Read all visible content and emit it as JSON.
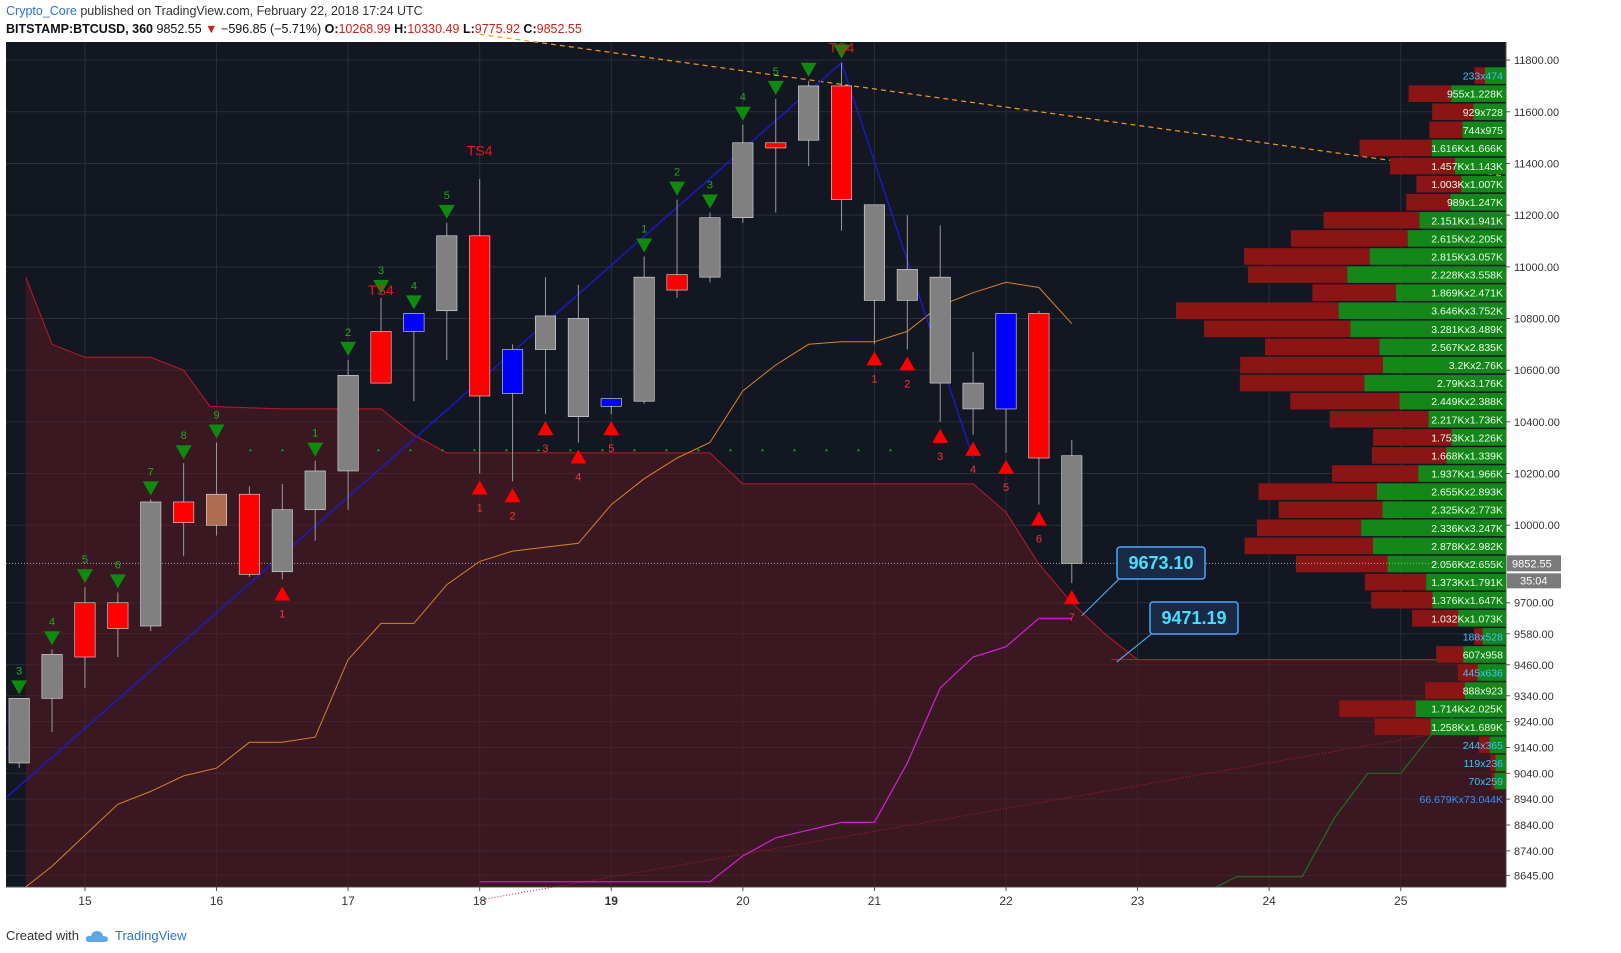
{
  "header": {
    "user": "Crypto_Core",
    "published": "published on TradingView.com, February 22, 2018 17:24 UTC",
    "symbol": "BITSTAMP:BTCUSD, 360",
    "last": "9852.55",
    "change": "−596.85 (−5.71%)",
    "o_label": "O:",
    "o_val": "10268.99",
    "h_label": "H:",
    "h_val": "10330.49",
    "l_label": "L:",
    "l_val": "9775.92",
    "c_label": "C:",
    "c_val": "9852.55"
  },
  "footer": {
    "created": "Created with",
    "brand": "TradingView",
    "logo_icon": "tradingview-cloud-icon"
  },
  "colors": {
    "background": "#131722",
    "up": "#808080",
    "down": "#ff0000",
    "blue": "#0000ff",
    "brown": "#b06d4e",
    "grid": "#2a2e39",
    "buy_marker": "#0f8a0f",
    "sell_marker": "#ff0000"
  },
  "chart_data": {
    "type": "candlestick",
    "ylim": [
      8600,
      11870
    ],
    "y_ticks": [
      8645,
      8740,
      8840,
      8940,
      9040,
      9140,
      9240,
      9340,
      9460,
      9580,
      9700,
      9852.55,
      10000,
      10200,
      10400,
      10600,
      10800,
      11000,
      11200,
      11400,
      11600,
      11800
    ],
    "y_tick_labels": [
      "8645.00",
      "8740.00",
      "8840.00",
      "8940.00",
      "9040.00",
      "9140.00",
      "9240.00",
      "9340.00",
      "9460.00",
      "9580.00",
      "9700.00",
      "9852.55",
      "10000.00",
      "10200.00",
      "10400.00",
      "10600.00",
      "10800.00",
      "11000.00",
      "11200.00",
      "11400.00",
      "11600.00",
      "11800.00"
    ],
    "x_tick_labels": [
      "15",
      "16",
      "17",
      "18",
      "19",
      "20",
      "21",
      "22",
      "23",
      "24",
      "25"
    ],
    "x_tick_days": [
      15,
      16,
      17,
      18,
      19,
      20,
      21,
      22,
      23,
      24,
      25
    ],
    "x_range_days": [
      14.4,
      25.8
    ],
    "last_price_label": "9852.55",
    "countdown_label": "35:04",
    "candles": [
      {
        "t": 14.5,
        "o": 9080,
        "h": 9330,
        "l": 9060,
        "c": 9330,
        "col": "up"
      },
      {
        "t": 14.75,
        "o": 9330,
        "h": 9520,
        "l": 9200,
        "c": 9500,
        "col": "up"
      },
      {
        "t": 15.0,
        "o": 9700,
        "h": 9760,
        "l": 9370,
        "c": 9490,
        "col": "down"
      },
      {
        "t": 15.25,
        "o": 9700,
        "h": 9740,
        "l": 9490,
        "c": 9600,
        "col": "down"
      },
      {
        "t": 15.5,
        "o": 9610,
        "h": 10100,
        "l": 9590,
        "c": 10090,
        "col": "up"
      },
      {
        "t": 15.75,
        "o": 10090,
        "h": 10240,
        "l": 9880,
        "c": 10010,
        "col": "down"
      },
      {
        "t": 16.0,
        "o": 10000,
        "h": 10320,
        "l": 9960,
        "c": 10120,
        "col": "brown"
      },
      {
        "t": 16.25,
        "o": 10120,
        "h": 10150,
        "l": 9800,
        "c": 9810,
        "col": "down"
      },
      {
        "t": 16.5,
        "o": 9820,
        "h": 10160,
        "l": 9790,
        "c": 10060,
        "col": "up"
      },
      {
        "t": 16.75,
        "o": 10060,
        "h": 10250,
        "l": 9940,
        "c": 10210,
        "col": "up"
      },
      {
        "t": 17.0,
        "o": 10210,
        "h": 10640,
        "l": 10060,
        "c": 10580,
        "col": "up"
      },
      {
        "t": 17.25,
        "o": 10750,
        "h": 10880,
        "l": 10560,
        "c": 10550,
        "col": "down"
      },
      {
        "t": 17.5,
        "o": 10750,
        "h": 10820,
        "l": 10480,
        "c": 10820,
        "col": "blue"
      },
      {
        "t": 17.75,
        "o": 10830,
        "h": 11170,
        "l": 10640,
        "c": 11120,
        "col": "up"
      },
      {
        "t": 18.0,
        "o": 11120,
        "h": 11340,
        "l": 10200,
        "c": 10500,
        "col": "down"
      },
      {
        "t": 18.25,
        "o": 10510,
        "h": 10700,
        "l": 10170,
        "c": 10680,
        "col": "blue"
      },
      {
        "t": 18.5,
        "o": 10680,
        "h": 10960,
        "l": 10430,
        "c": 10810,
        "col": "up"
      },
      {
        "t": 18.75,
        "o": 10800,
        "h": 10930,
        "l": 10320,
        "c": 10420,
        "col": "up"
      },
      {
        "t": 19.0,
        "o": 10460,
        "h": 10490,
        "l": 10430,
        "c": 10490,
        "col": "blue"
      },
      {
        "t": 19.25,
        "o": 10480,
        "h": 11040,
        "l": 10470,
        "c": 10960,
        "col": "up"
      },
      {
        "t": 19.5,
        "o": 10970,
        "h": 11260,
        "l": 10880,
        "c": 10910,
        "col": "down"
      },
      {
        "t": 19.75,
        "o": 10960,
        "h": 11210,
        "l": 10940,
        "c": 11190,
        "col": "up"
      },
      {
        "t": 20.0,
        "o": 11190,
        "h": 11550,
        "l": 11170,
        "c": 11480,
        "col": "up"
      },
      {
        "t": 20.25,
        "o": 11480,
        "h": 11650,
        "l": 11210,
        "c": 11460,
        "col": "down"
      },
      {
        "t": 20.5,
        "o": 11490,
        "h": 11720,
        "l": 11390,
        "c": 11700,
        "col": "up"
      },
      {
        "t": 20.75,
        "o": 11700,
        "h": 11790,
        "l": 11140,
        "c": 11260,
        "col": "down"
      },
      {
        "t": 21.0,
        "o": 10870,
        "h": 11240,
        "l": 10700,
        "c": 11240,
        "col": "up"
      },
      {
        "t": 21.25,
        "o": 10870,
        "h": 11200,
        "l": 10680,
        "c": 10990,
        "col": "up"
      },
      {
        "t": 21.5,
        "o": 10550,
        "h": 11160,
        "l": 10400,
        "c": 10960,
        "col": "up"
      },
      {
        "t": 21.75,
        "o": 10550,
        "h": 10670,
        "l": 10350,
        "c": 10450,
        "col": "up"
      },
      {
        "t": 22.0,
        "o": 10450,
        "h": 10820,
        "l": 10280,
        "c": 10820,
        "col": "blue"
      },
      {
        "t": 22.25,
        "o": 10820,
        "h": 10830,
        "l": 10080,
        "c": 10260,
        "col": "down"
      },
      {
        "t": 22.5,
        "o": 10268.99,
        "h": 10330.49,
        "l": 9775.92,
        "c": 9852.55,
        "col": "up"
      }
    ],
    "buy_markers": [
      {
        "t": 14.5,
        "label": "3"
      },
      {
        "t": 14.75,
        "label": "4"
      },
      {
        "t": 15.0,
        "label": "5"
      },
      {
        "t": 15.25,
        "label": "6"
      },
      {
        "t": 15.5,
        "label": "7"
      },
      {
        "t": 15.75,
        "label": "8"
      },
      {
        "t": 16.0,
        "label": "9"
      },
      {
        "t": 16.75,
        "label": "1"
      },
      {
        "t": 17.0,
        "label": "2"
      },
      {
        "t": 17.25,
        "label": "3"
      },
      {
        "t": 17.5,
        "label": "4"
      },
      {
        "t": 17.75,
        "label": "5"
      },
      {
        "t": 19.25,
        "label": "1"
      },
      {
        "t": 19.5,
        "label": "2"
      },
      {
        "t": 19.75,
        "label": "3"
      },
      {
        "t": 20.0,
        "label": "4"
      },
      {
        "t": 20.25,
        "label": "5"
      },
      {
        "t": 20.5,
        "label": ""
      },
      {
        "t": 20.75,
        "label": ""
      }
    ],
    "sell_markers": [
      {
        "t": 16.5,
        "label": "1"
      },
      {
        "t": 18.0,
        "label": "1"
      },
      {
        "t": 18.25,
        "label": "2"
      },
      {
        "t": 18.5,
        "label": "3"
      },
      {
        "t": 18.75,
        "label": "4"
      },
      {
        "t": 19.0,
        "label": "5"
      },
      {
        "t": 21.0,
        "label": "1"
      },
      {
        "t": 21.25,
        "label": "2"
      },
      {
        "t": 21.5,
        "label": "3"
      },
      {
        "t": 21.75,
        "label": "4"
      },
      {
        "t": 22.0,
        "label": "5"
      },
      {
        "t": 22.25,
        "label": "6"
      },
      {
        "t": 22.5,
        "label": "7"
      }
    ],
    "ts_labels": [
      {
        "t": 17.25,
        "p": 10890,
        "label": "TS4"
      },
      {
        "t": 18.0,
        "p": 11430,
        "label": "TS4"
      },
      {
        "t": 20.75,
        "p": 11830,
        "label": "TS4"
      }
    ],
    "zigzag": [
      {
        "t": 14.4,
        "p": 8945
      },
      {
        "t": 20.75,
        "p": 11790
      },
      {
        "t": 21.75,
        "p": 10260
      }
    ],
    "cloud_upper": [
      {
        "t": 14.55,
        "p": 10960
      },
      {
        "t": 14.75,
        "p": 10700
      },
      {
        "t": 15.0,
        "p": 10650
      },
      {
        "t": 15.5,
        "p": 10650
      },
      {
        "t": 15.75,
        "p": 10600
      },
      {
        "t": 15.95,
        "p": 10460
      },
      {
        "t": 16.5,
        "p": 10450
      },
      {
        "t": 17.25,
        "p": 10450
      },
      {
        "t": 17.5,
        "p": 10350
      },
      {
        "t": 17.75,
        "p": 10280
      },
      {
        "t": 19.75,
        "p": 10280
      },
      {
        "t": 20.0,
        "p": 10160
      },
      {
        "t": 21.75,
        "p": 10160
      },
      {
        "t": 22.0,
        "p": 10050
      },
      {
        "t": 22.25,
        "p": 9850
      },
      {
        "t": 22.5,
        "p": 9700
      },
      {
        "t": 22.75,
        "p": 9580
      },
      {
        "t": 23.0,
        "p": 9480
      },
      {
        "t": 25.8,
        "p": 9480
      }
    ],
    "cloud_lower": [
      {
        "t": 14.55,
        "p": 8600
      },
      {
        "t": 25.8,
        "p": 8600
      }
    ],
    "orange_line": [
      {
        "t": 14.55,
        "p": 8600
      },
      {
        "t": 14.75,
        "p": 8680
      },
      {
        "t": 15.0,
        "p": 8800
      },
      {
        "t": 15.25,
        "p": 8920
      },
      {
        "t": 15.5,
        "p": 8970
      },
      {
        "t": 15.75,
        "p": 9030
      },
      {
        "t": 16.0,
        "p": 9060
      },
      {
        "t": 16.25,
        "p": 9160
      },
      {
        "t": 16.5,
        "p": 9160
      },
      {
        "t": 16.75,
        "p": 9180
      },
      {
        "t": 17.0,
        "p": 9480
      },
      {
        "t": 17.25,
        "p": 9620
      },
      {
        "t": 17.5,
        "p": 9620
      },
      {
        "t": 17.75,
        "p": 9770
      },
      {
        "t": 18.0,
        "p": 9860
      },
      {
        "t": 18.25,
        "p": 9900
      },
      {
        "t": 18.75,
        "p": 9930
      },
      {
        "t": 19.0,
        "p": 10080
      },
      {
        "t": 19.25,
        "p": 10180
      },
      {
        "t": 19.5,
        "p": 10260
      },
      {
        "t": 19.75,
        "p": 10320
      },
      {
        "t": 20.0,
        "p": 10520
      },
      {
        "t": 20.25,
        "p": 10620
      },
      {
        "t": 20.5,
        "p": 10700
      },
      {
        "t": 20.75,
        "p": 10710
      },
      {
        "t": 21.0,
        "p": 10710
      },
      {
        "t": 21.25,
        "p": 10750
      },
      {
        "t": 21.5,
        "p": 10850
      },
      {
        "t": 21.75,
        "p": 10900
      },
      {
        "t": 22.0,
        "p": 10940
      },
      {
        "t": 22.25,
        "p": 10920
      },
      {
        "t": 22.5,
        "p": 10780
      }
    ],
    "magenta_line": [
      {
        "t": 18.0,
        "p": 8620
      },
      {
        "t": 19.75,
        "p": 8620
      },
      {
        "t": 20.0,
        "p": 8720
      },
      {
        "t": 20.25,
        "p": 8790
      },
      {
        "t": 20.5,
        "p": 8820
      },
      {
        "t": 20.75,
        "p": 8850
      },
      {
        "t": 21.0,
        "p": 8850
      },
      {
        "t": 21.25,
        "p": 9080
      },
      {
        "t": 21.5,
        "p": 9370
      },
      {
        "t": 21.75,
        "p": 9490
      },
      {
        "t": 22.0,
        "p": 9530
      },
      {
        "t": 22.25,
        "p": 9640
      },
      {
        "t": 22.5,
        "p": 9640
      }
    ],
    "green_line": [
      {
        "t": 23.6,
        "p": 8600
      },
      {
        "t": 23.75,
        "p": 8640
      },
      {
        "t": 24.25,
        "p": 8640
      },
      {
        "t": 24.5,
        "p": 8870
      },
      {
        "t": 24.75,
        "p": 9040
      },
      {
        "t": 25.0,
        "p": 9040
      },
      {
        "t": 25.25,
        "p": 9200
      },
      {
        "t": 25.5,
        "p": 9300
      }
    ],
    "trend_dashed": {
      "t1": 18.0,
      "p1": 11900,
      "t2": 25.8,
      "p2": 11350
    },
    "trend_dotted": {
      "t1": 18.0,
      "p1": 8550,
      "t2": 25.8,
      "p2": 9240
    },
    "flat_line": {
      "t1": 22.8,
      "p1": 9480,
      "t2": 25.8,
      "p2": 9480
    },
    "dotted_level": {
      "t1": 16.25,
      "p1": 10290,
      "t2": 21.25,
      "p2": 10290
    },
    "callouts": [
      {
        "label": "9673.10",
        "t": 22.5,
        "p": 9650
      },
      {
        "label": "9471.19",
        "t": 22.75,
        "p": 9471
      }
    ],
    "volume_profile": [
      {
        "p": 11740,
        "sell": 233,
        "buy": 474,
        "label": "233x474"
      },
      {
        "p": 11670,
        "sell": 955,
        "buy": 1228,
        "label": "955x1.228K"
      },
      {
        "p": 11600,
        "sell": 929,
        "buy": 728,
        "label": "929x728"
      },
      {
        "p": 11530,
        "sell": 744,
        "buy": 975,
        "label": "744x975"
      },
      {
        "p": 11460,
        "sell": 1616,
        "buy": 1666,
        "label": "1.616Kx1.666K"
      },
      {
        "p": 11390,
        "sell": 1457,
        "buy": 1143,
        "label": "1.457Kx1.143K"
      },
      {
        "p": 11320,
        "sell": 1003,
        "buy": 1007,
        "label": "1.003Kx1.007K"
      },
      {
        "p": 11250,
        "sell": 989,
        "buy": 1247,
        "label": "989x1.247K"
      },
      {
        "p": 11180,
        "sell": 2151,
        "buy": 1941,
        "label": "2.151Kx1.941K"
      },
      {
        "p": 11110,
        "sell": 2615,
        "buy": 2205,
        "label": "2.615Kx2.205K"
      },
      {
        "p": 11040,
        "sell": 2815,
        "buy": 3057,
        "label": "2.815Kx3.057K"
      },
      {
        "p": 10970,
        "sell": 2228,
        "buy": 3558,
        "label": "2.228Kx3.558K"
      },
      {
        "p": 10900,
        "sell": 1869,
        "buy": 2471,
        "label": "1.869Kx2.471K"
      },
      {
        "p": 10830,
        "sell": 3646,
        "buy": 3752,
        "label": "3.646Kx3.752K"
      },
      {
        "p": 10760,
        "sell": 3281,
        "buy": 3489,
        "label": "3.281Kx3.489K"
      },
      {
        "p": 10690,
        "sell": 2567,
        "buy": 2835,
        "label": "2.567Kx2.835K"
      },
      {
        "p": 10620,
        "sell": 3200,
        "buy": 2760,
        "label": "3.2Kx2.76K"
      },
      {
        "p": 10550,
        "sell": 2790,
        "buy": 3176,
        "label": "2.79Kx3.176K"
      },
      {
        "p": 10480,
        "sell": 2449,
        "buy": 2388,
        "label": "2.449Kx2.388K"
      },
      {
        "p": 10410,
        "sell": 2217,
        "buy": 1736,
        "label": "2.217Kx1.736K"
      },
      {
        "p": 10340,
        "sell": 1753,
        "buy": 1226,
        "label": "1.753Kx1.226K"
      },
      {
        "p": 10270,
        "sell": 1668,
        "buy": 1339,
        "label": "1.668Kx1.339K"
      },
      {
        "p": 10200,
        "sell": 1937,
        "buy": 1966,
        "label": "1.937Kx1.966K"
      },
      {
        "p": 10130,
        "sell": 2655,
        "buy": 2893,
        "label": "2.655Kx2.893K"
      },
      {
        "p": 10060,
        "sell": 2325,
        "buy": 2773,
        "label": "2.325Kx2.773K"
      },
      {
        "p": 9990,
        "sell": 2336,
        "buy": 3247,
        "label": "2.336Kx3.247K"
      },
      {
        "p": 9920,
        "sell": 2878,
        "buy": 2982,
        "label": "2.878Kx2.982K"
      },
      {
        "p": 9850,
        "sell": 2056,
        "buy": 2655,
        "label": "2.056Kx2.655K"
      },
      {
        "p": 9780,
        "sell": 1373,
        "buy": 1791,
        "label": "1.373Kx1.791K"
      },
      {
        "p": 9710,
        "sell": 1376,
        "buy": 1647,
        "label": "1.376Kx1.647K"
      },
      {
        "p": 9640,
        "sell": 1032,
        "buy": 1073,
        "label": "1.032Kx1.073K"
      },
      {
        "p": 9570,
        "sell": 188,
        "buy": 528,
        "label": "188x528"
      },
      {
        "p": 9500,
        "sell": 607,
        "buy": 958,
        "label": "607x958"
      },
      {
        "p": 9430,
        "sell": 445,
        "buy": 636,
        "label": "445x636"
      },
      {
        "p": 9360,
        "sell": 888,
        "buy": 923,
        "label": "888x923"
      },
      {
        "p": 9290,
        "sell": 1714,
        "buy": 2025,
        "label": "1.714Kx2.025K"
      },
      {
        "p": 9220,
        "sell": 1258,
        "buy": 1689,
        "label": "1.258Kx1.689K"
      },
      {
        "p": 9150,
        "sell": 244,
        "buy": 365,
        "label": "244x365"
      },
      {
        "p": 9080,
        "sell": 119,
        "buy": 236,
        "label": "119x236"
      },
      {
        "p": 9010,
        "sell": 70,
        "buy": 259,
        "label": "70x259"
      }
    ],
    "volume_total_label": "66.679Kx73.044K"
  }
}
